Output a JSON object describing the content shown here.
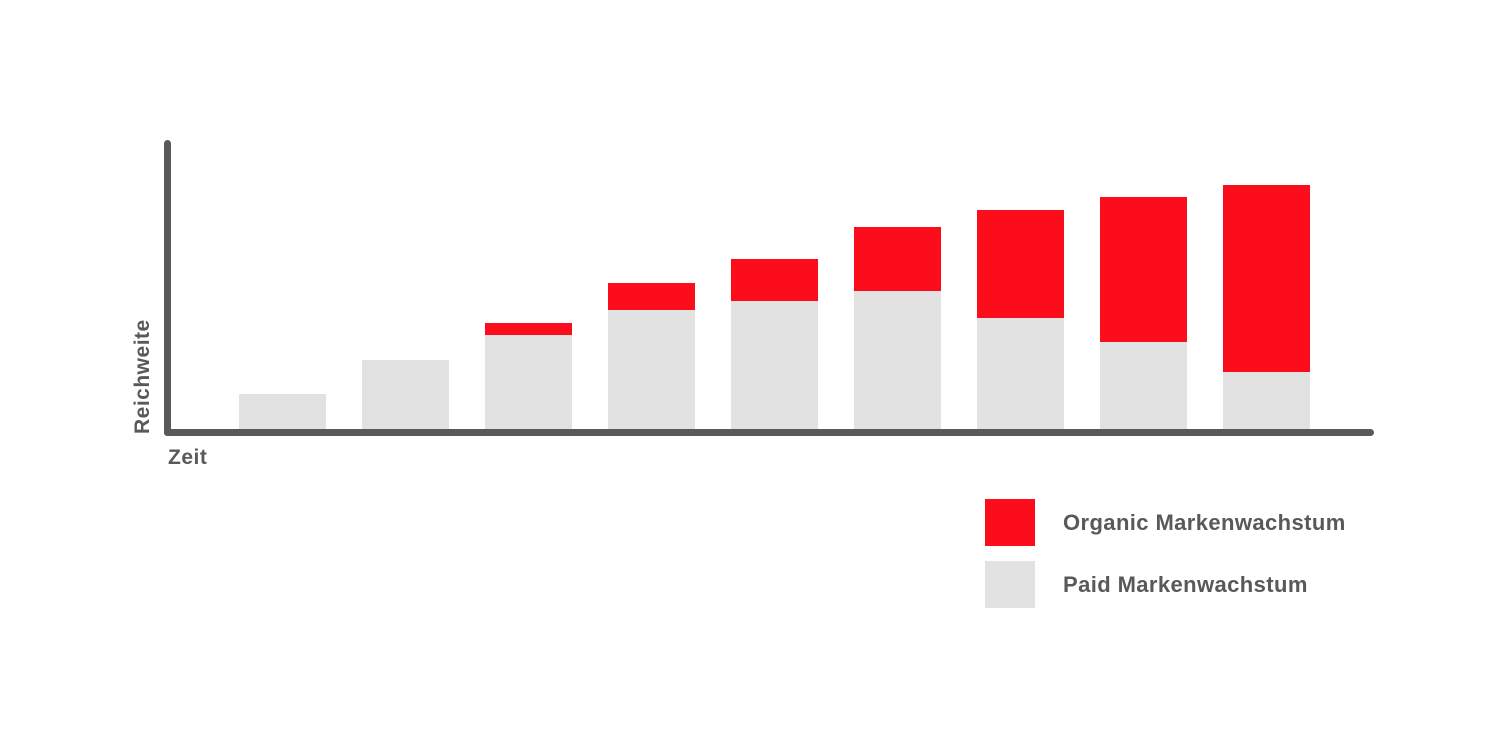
{
  "chart_data": {
    "type": "bar",
    "stacked": true,
    "title": "",
    "xlabel": "Zeit",
    "ylabel": "Reichweite",
    "x": [
      1,
      2,
      3,
      4,
      5,
      6,
      7,
      8,
      9
    ],
    "x_tick_labels": [],
    "ylim": [
      0,
      100
    ],
    "grid": false,
    "numeric_axis_labels": false,
    "legend_position": "bottom-right",
    "units": "relative reach, estimated 0-100 scale (no numeric axis shown)",
    "series": [
      {
        "name": "Paid Markenwachstum",
        "color": "#E2E2E2",
        "values": [
          15,
          29,
          39,
          49,
          53,
          57,
          46,
          36,
          24
        ]
      },
      {
        "name": "Organic Markenwachstum",
        "color": "#FC0D1B",
        "values": [
          0,
          0,
          5,
          11,
          17,
          26,
          44,
          59,
          76
        ]
      }
    ]
  },
  "legend": {
    "items": [
      {
        "label": "Organic Markenwachstum",
        "color": "#FC0D1B"
      },
      {
        "label": "Paid Markenwachstum",
        "color": "#E2E2E2"
      }
    ]
  },
  "colors": {
    "axis": "#58595B",
    "text": "#58595B",
    "background": "#FFFFFF"
  }
}
